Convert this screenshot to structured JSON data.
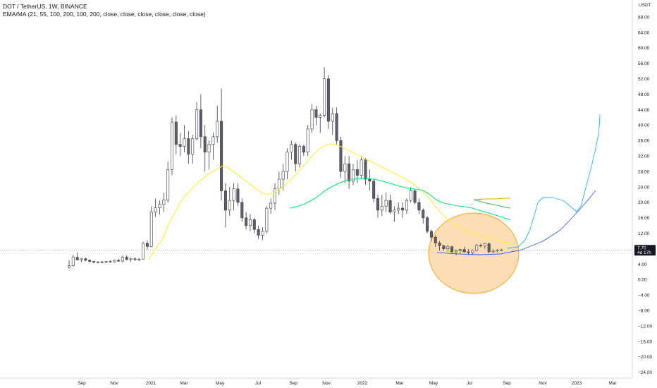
{
  "header": {
    "title": "DOT / TetherUS, 1W, BINANCE",
    "indicators": "EMA/MA (21, 55, 100, 200, 100, 200, close, close, close, close, close, close)"
  },
  "chart_data": {
    "type": "candlestick",
    "currency_label": "USDT",
    "y_ticks": [
      68,
      64,
      60,
      56,
      52,
      48,
      44,
      40,
      36,
      32,
      28,
      24,
      20,
      16,
      12,
      8,
      4,
      0,
      -4,
      -8,
      -12,
      -16,
      -20,
      -24
    ],
    "y_tick_labels": [
      "68.00",
      "64.00",
      "60.00",
      "56.00",
      "52.00",
      "48.00",
      "44.00",
      "40.00",
      "36.00",
      "32.00",
      "28.00",
      "24.00",
      "20.00",
      "16.00",
      "12.00",
      "8.00",
      "4.00",
      "0.00",
      "−4.00",
      "−8.00",
      "−12.00",
      "−16.00",
      "−20.00",
      "−24.00"
    ],
    "ylim": [
      -26,
      70
    ],
    "x_tick_labels": [
      "Sep",
      "Nov",
      "2021",
      "Mar",
      "May",
      "Jul",
      "Sep",
      "Nov",
      "2022",
      "Mar",
      "May",
      "Jul",
      "Sep",
      "Nov",
      "2023",
      "Mar"
    ],
    "last_price": {
      "value": "7.70",
      "countdown": "4d 17h"
    },
    "candles": [
      [
        3.2,
        5.0,
        2.8,
        3.6
      ],
      [
        3.6,
        6.4,
        3.4,
        5.8
      ],
      [
        5.8,
        7.0,
        5.0,
        5.1
      ],
      [
        5.1,
        5.6,
        4.5,
        5.4
      ],
      [
        5.4,
        5.7,
        4.8,
        5.0
      ],
      [
        5.0,
        5.3,
        4.5,
        4.7
      ],
      [
        4.7,
        4.9,
        4.2,
        4.5
      ],
      [
        4.5,
        4.8,
        4.2,
        4.6
      ],
      [
        4.6,
        4.9,
        4.3,
        4.5
      ],
      [
        4.5,
        4.8,
        4.2,
        4.7
      ],
      [
        4.7,
        5.0,
        4.4,
        4.6
      ],
      [
        4.6,
        5.2,
        4.4,
        5.0
      ],
      [
        5.0,
        5.4,
        4.6,
        4.8
      ],
      [
        4.8,
        6.2,
        4.5,
        5.8
      ],
      [
        5.8,
        6.3,
        5.0,
        5.2
      ],
      [
        5.2,
        5.6,
        4.6,
        5.4
      ],
      [
        5.4,
        5.8,
        4.8,
        5.2
      ],
      [
        5.2,
        5.6,
        4.8,
        5.3
      ],
      [
        5.3,
        9.8,
        5.2,
        9.4
      ],
      [
        9.4,
        10.2,
        7.8,
        8.6
      ],
      [
        8.6,
        19.0,
        8.4,
        17.5
      ],
      [
        17.5,
        21.0,
        16.2,
        18.6
      ],
      [
        18.6,
        20.5,
        16.8,
        19.5
      ],
      [
        19.5,
        22.5,
        17.5,
        20.6
      ],
      [
        20.6,
        30.5,
        20.0,
        28.5
      ],
      [
        28.5,
        42.0,
        27.0,
        40.8
      ],
      [
        40.8,
        42.5,
        32.5,
        35.0
      ],
      [
        35.0,
        38.0,
        32.0,
        34.5
      ],
      [
        34.5,
        40.0,
        33.0,
        36.5
      ],
      [
        36.5,
        38.5,
        30.0,
        32.5
      ],
      [
        32.5,
        37.5,
        30.0,
        36.5
      ],
      [
        36.5,
        46.0,
        36.0,
        44.0
      ],
      [
        44.0,
        48.0,
        34.0,
        37.0
      ],
      [
        37.0,
        40.0,
        28.0,
        33.0
      ],
      [
        33.0,
        36.0,
        28.5,
        35.0
      ],
      [
        35.0,
        38.0,
        31.0,
        37.0
      ],
      [
        37.0,
        45.0,
        35.5,
        41.0
      ],
      [
        41.0,
        49.5,
        20.5,
        23.0
      ],
      [
        23.0,
        25.0,
        13.5,
        18.0
      ],
      [
        18.0,
        24.0,
        16.5,
        20.5
      ],
      [
        20.5,
        25.0,
        18.0,
        23.5
      ],
      [
        23.5,
        25.0,
        19.0,
        20.0
      ],
      [
        20.0,
        21.0,
        15.0,
        16.0
      ],
      [
        16.0,
        17.5,
        13.0,
        14.0
      ],
      [
        14.0,
        17.0,
        12.5,
        15.5
      ],
      [
        15.5,
        16.0,
        12.0,
        13.0
      ],
      [
        13.0,
        14.0,
        10.5,
        11.5
      ],
      [
        11.5,
        13.5,
        10.2,
        12.5
      ],
      [
        12.5,
        19.0,
        12.0,
        18.5
      ],
      [
        18.5,
        21.0,
        17.0,
        19.8
      ],
      [
        19.8,
        25.0,
        18.0,
        23.5
      ],
      [
        23.5,
        28.0,
        22.0,
        26.0
      ],
      [
        26.0,
        30.0,
        23.0,
        28.0
      ],
      [
        28.0,
        34.0,
        26.0,
        33.0
      ],
      [
        33.0,
        36.0,
        31.0,
        35.0
      ],
      [
        35.0,
        35.5,
        28.0,
        30.0
      ],
      [
        30.0,
        35.0,
        29.0,
        34.5
      ],
      [
        34.5,
        35.0,
        32.0,
        33.0
      ],
      [
        33.0,
        40.0,
        32.0,
        39.0
      ],
      [
        39.0,
        45.5,
        38.0,
        44.0
      ],
      [
        44.0,
        45.0,
        40.0,
        42.0
      ],
      [
        42.0,
        43.0,
        38.0,
        42.5
      ],
      [
        42.5,
        55.0,
        42.0,
        52.0
      ],
      [
        52.0,
        53.0,
        39.0,
        41.0
      ],
      [
        41.0,
        44.5,
        37.5,
        43.0
      ],
      [
        43.0,
        44.5,
        35.0,
        36.0
      ],
      [
        36.0,
        37.0,
        26.5,
        28.0
      ],
      [
        28.0,
        32.0,
        25.0,
        30.0
      ],
      [
        30.0,
        32.0,
        23.5,
        25.5
      ],
      [
        25.5,
        30.0,
        24.5,
        28.5
      ],
      [
        28.5,
        31.0,
        25.0,
        27.0
      ],
      [
        27.0,
        32.0,
        26.0,
        31.0
      ],
      [
        31.0,
        31.5,
        24.5,
        26.0
      ],
      [
        26.0,
        28.5,
        23.0,
        25.5
      ],
      [
        25.5,
        26.0,
        20.0,
        21.0
      ],
      [
        21.0,
        22.0,
        16.0,
        18.0
      ],
      [
        18.0,
        22.0,
        16.5,
        19.0
      ],
      [
        19.0,
        22.5,
        17.5,
        20.5
      ],
      [
        20.5,
        22.0,
        17.0,
        17.5
      ],
      [
        17.5,
        19.0,
        15.0,
        18.0
      ],
      [
        18.0,
        20.0,
        17.0,
        18.5
      ],
      [
        18.5,
        20.0,
        16.0,
        18.0
      ],
      [
        18.0,
        21.0,
        17.0,
        20.5
      ],
      [
        20.5,
        24.0,
        20.0,
        23.0
      ],
      [
        23.0,
        23.5,
        19.5,
        20.0
      ],
      [
        20.0,
        21.0,
        17.0,
        18.0
      ],
      [
        18.0,
        18.5,
        14.5,
        16.0
      ],
      [
        16.0,
        16.5,
        12.0,
        12.5
      ],
      [
        12.5,
        13.0,
        10.0,
        11.0
      ],
      [
        11.0,
        11.5,
        8.5,
        9.5
      ],
      [
        9.5,
        10.0,
        7.5,
        8.8
      ],
      [
        8.8,
        9.0,
        7.5,
        8.0
      ],
      [
        8.0,
        9.0,
        7.3,
        8.5
      ],
      [
        8.5,
        8.8,
        7.0,
        7.2
      ],
      [
        7.2,
        7.8,
        6.3,
        7.5
      ],
      [
        7.5,
        8.0,
        6.8,
        7.8
      ],
      [
        7.8,
        8.5,
        7.0,
        7.2
      ],
      [
        7.2,
        7.9,
        6.4,
        7.0
      ],
      [
        7.0,
        7.8,
        6.4,
        7.6
      ],
      [
        7.6,
        9.2,
        7.3,
        8.9
      ],
      [
        8.9,
        9.3,
        8.4,
        8.7
      ],
      [
        8.7,
        9.5,
        8.0,
        9.3
      ],
      [
        9.3,
        9.6,
        6.8,
        7.2
      ],
      [
        7.2,
        7.9,
        6.9,
        7.4
      ],
      [
        7.4,
        7.9,
        7.1,
        7.6
      ],
      [
        7.6,
        8.0,
        7.4,
        7.7
      ]
    ],
    "ema21": [
      [
        [
          210,
          368
        ],
        [
          215,
          362
        ],
        [
          222,
          350
        ],
        [
          230,
          340
        ],
        [
          238,
          320
        ],
        [
          246,
          305
        ],
        [
          254,
          290
        ],
        [
          262,
          278
        ],
        [
          270,
          270
        ],
        [
          278,
          262
        ],
        [
          285,
          255
        ],
        [
          292,
          250
        ],
        [
          300,
          244
        ],
        [
          308,
          240
        ],
        [
          316,
          235
        ],
        [
          324,
          238
        ],
        [
          332,
          244
        ],
        [
          340,
          250
        ],
        [
          348,
          256
        ],
        [
          356,
          262
        ],
        [
          364,
          268
        ],
        [
          372,
          274
        ],
        [
          380,
          276
        ],
        [
          388,
          274
        ],
        [
          396,
          268
        ],
        [
          404,
          262
        ],
        [
          412,
          255
        ],
        [
          420,
          247
        ],
        [
          428,
          238
        ],
        [
          436,
          229
        ],
        [
          444,
          220
        ],
        [
          452,
          212
        ],
        [
          460,
          207
        ],
        [
          468,
          204
        ],
        [
          476,
          205
        ],
        [
          484,
          208
        ],
        [
          492,
          212
        ],
        [
          500,
          216
        ],
        [
          508,
          220
        ],
        [
          516,
          224
        ],
        [
          524,
          228
        ],
        [
          532,
          232
        ],
        [
          540,
          236
        ],
        [
          548,
          240
        ],
        [
          556,
          244
        ],
        [
          564,
          248
        ],
        [
          572,
          252
        ],
        [
          580,
          257
        ],
        [
          588,
          262
        ],
        [
          596,
          268
        ],
        [
          604,
          276
        ],
        [
          612,
          285
        ],
        [
          620,
          295
        ],
        [
          628,
          304
        ],
        [
          636,
          312
        ],
        [
          644,
          318
        ],
        [
          652,
          323
        ],
        [
          660,
          327
        ],
        [
          668,
          330
        ],
        [
          676,
          333
        ],
        [
          684,
          335
        ],
        [
          692,
          337
        ],
        [
          700,
          339
        ],
        [
          708,
          341
        ],
        [
          716,
          343
        ],
        [
          724,
          344
        ]
      ]
    ],
    "ma55": [
      [
        [
          411,
          295
        ],
        [
          420,
          293
        ],
        [
          430,
          290
        ],
        [
          440,
          285
        ],
        [
          450,
          279
        ],
        [
          460,
          271
        ],
        [
          470,
          265
        ],
        [
          480,
          260
        ],
        [
          490,
          256
        ],
        [
          500,
          254
        ],
        [
          510,
          253
        ],
        [
          520,
          253
        ],
        [
          530,
          254
        ],
        [
          540,
          256
        ],
        [
          550,
          259
        ],
        [
          560,
          262
        ],
        [
          570,
          265
        ],
        [
          580,
          267
        ],
        [
          590,
          268
        ],
        [
          600,
          270
        ],
        [
          610,
          276
        ],
        [
          620,
          284
        ],
        [
          630,
          288
        ],
        [
          640,
          290
        ],
        [
          650,
          292
        ],
        [
          660,
          293
        ],
        [
          670,
          295
        ],
        [
          680,
          298
        ],
        [
          690,
          301
        ],
        [
          700,
          304
        ],
        [
          710,
          307
        ],
        [
          718,
          310
        ],
        [
          724,
          312
        ]
      ]
    ],
    "extra_lines": [
      {
        "color": "#ff9800",
        "points": [
          [
            672,
            283
          ],
          [
            688,
            282
          ],
          [
            704,
            282
          ],
          [
            716,
            281
          ],
          [
            724,
            281
          ]
        ]
      },
      {
        "color": "#4caf50",
        "points": [
          [
            672,
            283
          ],
          [
            690,
            288
          ],
          [
            705,
            291
          ],
          [
            718,
            294
          ],
          [
            724,
            295
          ]
        ]
      }
    ],
    "projection_curve": [
      [
        620,
        358
      ],
      [
        650,
        360
      ],
      [
        680,
        361
      ],
      [
        710,
        360
      ],
      [
        740,
        354
      ],
      [
        770,
        342
      ],
      [
        795,
        326
      ],
      [
        815,
        305
      ],
      [
        832,
        286
      ],
      [
        845,
        270
      ]
    ],
    "projection_path": [
      [
        720,
        352
      ],
      [
        735,
        350
      ],
      [
        745,
        340
      ],
      [
        752,
        325
      ],
      [
        758,
        305
      ],
      [
        763,
        287
      ],
      [
        770,
        280
      ],
      [
        785,
        280
      ],
      [
        800,
        285
      ],
      [
        812,
        295
      ],
      [
        818,
        300
      ],
      [
        824,
        292
      ],
      [
        830,
        270
      ],
      [
        838,
        240
      ],
      [
        844,
        215
      ],
      [
        848,
        195
      ],
      [
        850,
        180
      ],
      [
        851,
        162
      ]
    ],
    "highlight_circle": {
      "color": "#f5a623"
    }
  }
}
